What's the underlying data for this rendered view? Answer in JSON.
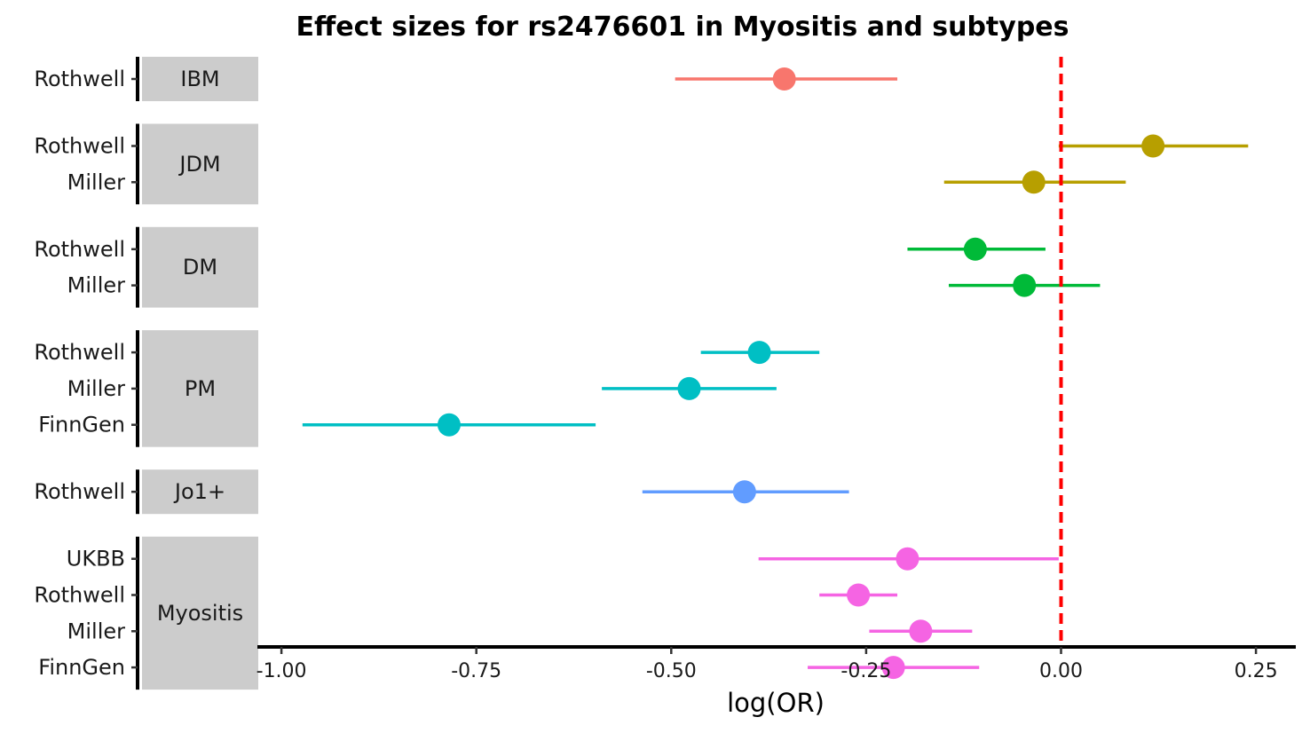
{
  "chart_data": {
    "type": "scatter",
    "subtype": "forest-plot",
    "title": "Effect sizes for rs2476601 in Myositis and subtypes",
    "xlabel": "log(OR)",
    "ylabel": "",
    "xlim": [
      -1.04,
      0.29
    ],
    "x_ticks": [
      -1.0,
      -0.75,
      -0.5,
      -0.25,
      0.0,
      0.25
    ],
    "x_tick_labels": [
      "-1.00",
      "-0.75",
      "-0.50",
      "-0.25",
      "0.00",
      "0.25"
    ],
    "reference_line": {
      "x": 0.0,
      "style": "dashed",
      "color": "#FF0000"
    },
    "grid": false,
    "legend": "none",
    "panels": [
      {
        "label": "IBM",
        "color": "#F8766D",
        "rows": [
          {
            "study": "Rothwell",
            "estimate": -0.355,
            "lower": -0.495,
            "upper": -0.21
          }
        ]
      },
      {
        "label": "JDM",
        "color": "#B79F00",
        "rows": [
          {
            "study": "Rothwell",
            "estimate": 0.118,
            "lower": -0.003,
            "upper": 0.24
          },
          {
            "study": "Miller",
            "estimate": -0.035,
            "lower": -0.15,
            "upper": 0.083
          }
        ]
      },
      {
        "label": "DM",
        "color": "#00BA38",
        "rows": [
          {
            "study": "Rothwell",
            "estimate": -0.11,
            "lower": -0.197,
            "upper": -0.02
          },
          {
            "study": "Miller",
            "estimate": -0.047,
            "lower": -0.144,
            "upper": 0.05
          }
        ]
      },
      {
        "label": "PM",
        "color": "#00BFC4",
        "rows": [
          {
            "study": "Rothwell",
            "estimate": -0.387,
            "lower": -0.462,
            "upper": -0.31
          },
          {
            "study": "Miller",
            "estimate": -0.477,
            "lower": -0.589,
            "upper": -0.365
          },
          {
            "study": "FinnGen",
            "estimate": -0.785,
            "lower": -0.973,
            "upper": -0.597
          }
        ]
      },
      {
        "label": "Jo1+",
        "color": "#619CFF",
        "rows": [
          {
            "study": "Rothwell",
            "estimate": -0.406,
            "lower": -0.537,
            "upper": -0.272
          }
        ]
      },
      {
        "label": "Myositis",
        "color": "#F564E3",
        "rows": [
          {
            "study": "UKBB",
            "estimate": -0.197,
            "lower": -0.388,
            "upper": -0.003
          },
          {
            "study": "Rothwell",
            "estimate": -0.26,
            "lower": -0.31,
            "upper": -0.21
          },
          {
            "study": "Miller",
            "estimate": -0.18,
            "lower": -0.246,
            "upper": -0.114
          },
          {
            "study": "FinnGen",
            "estimate": -0.215,
            "lower": -0.325,
            "upper": -0.105
          }
        ]
      }
    ]
  }
}
